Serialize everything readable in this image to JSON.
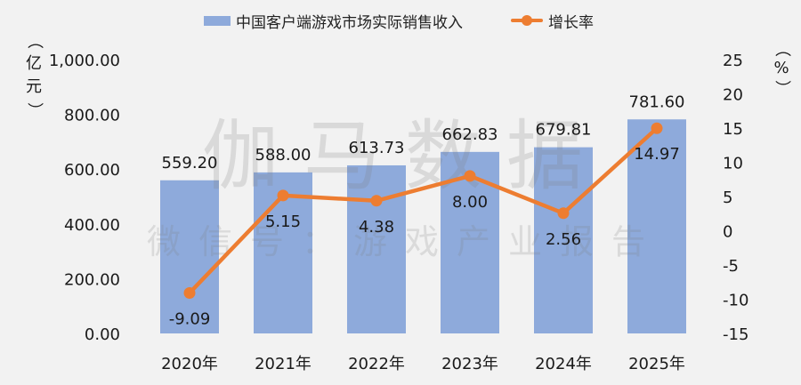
{
  "legend": {
    "bar_label": "中国客户端游戏市场实际销售收入",
    "line_label": "增长率"
  },
  "axes": {
    "left_title": [
      "（",
      "亿",
      "元",
      "）"
    ],
    "right_title": [
      "（",
      "%",
      "）"
    ],
    "left_ticks": [
      "0.00",
      "200.00",
      "400.00",
      "600.00",
      "800.00",
      "1,000.00"
    ],
    "right_ticks": [
      "-15",
      "-10",
      "-5",
      "0",
      "5",
      "10",
      "15",
      "20",
      "25"
    ]
  },
  "watermark": {
    "main": "伽马数据",
    "sub": "微信号：游戏产业报告"
  },
  "colors": {
    "bar": "#8eaadb",
    "line": "#ed7d31",
    "background": "#f2f2f2"
  },
  "chart_data": {
    "type": "bar+line",
    "title": "",
    "categories": [
      "2020年",
      "2021年",
      "2022年",
      "2023年",
      "2024年",
      "2025年"
    ],
    "series": [
      {
        "name": "中国客户端游戏市场实际销售收入",
        "type": "bar",
        "axis": "left",
        "values": [
          559.2,
          588.0,
          613.73,
          662.83,
          679.81,
          781.6
        ],
        "labels": [
          "559.20",
          "588.00",
          "613.73",
          "662.83",
          "679.81",
          "781.60"
        ]
      },
      {
        "name": "增长率",
        "type": "line",
        "axis": "right",
        "values": [
          -9.09,
          5.15,
          4.38,
          8.0,
          2.56,
          14.97
        ],
        "labels": [
          "-9.09",
          "5.15",
          "4.38",
          "8.00",
          "2.56",
          "14.97"
        ]
      }
    ],
    "xlabel": "",
    "ylabel": "（亿元）",
    "y2label": "（%）",
    "ylim": [
      0,
      1000
    ],
    "y2lim": [
      -15,
      25
    ],
    "grid": false,
    "legend_position": "top"
  }
}
